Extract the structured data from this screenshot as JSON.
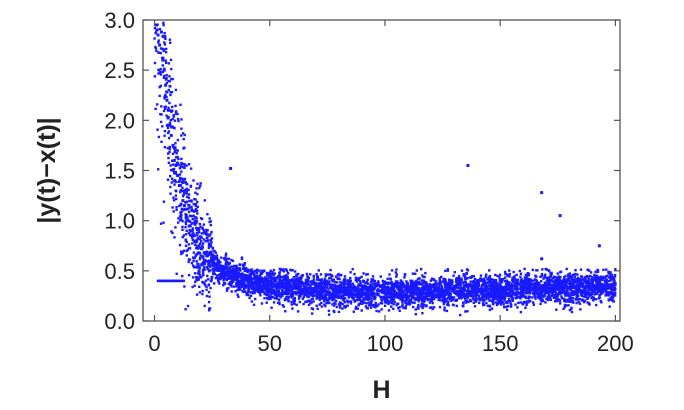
{
  "colors": {
    "points": "#1a1aff",
    "axis": "#555555",
    "text": "#222222",
    "background": "#ffffff"
  },
  "chart_data": {
    "type": "scatter",
    "title": "",
    "xlabel": "H",
    "ylabel": "|y(t)−x(t)|",
    "xlim": [
      -5,
      202
    ],
    "ylim": [
      0,
      3.0
    ],
    "x_ticks": [
      0,
      50,
      100,
      150,
      200
    ],
    "y_ticks": [
      0.0,
      0.5,
      1.0,
      1.5,
      2.0,
      2.5,
      3.0
    ],
    "x_tick_labels": [
      "0",
      "50",
      "100",
      "150",
      "200"
    ],
    "y_tick_labels": [
      "0.0",
      "0.5",
      "1.0",
      "1.5",
      "2.0",
      "2.5",
      "3.0"
    ],
    "grid": false,
    "legend": "none",
    "series": [
      {
        "points": [
          [
            0.8,
            2.95
          ],
          [
            1.5,
            2.85
          ],
          [
            2.2,
            2.75
          ],
          [
            3.0,
            2.88
          ],
          [
            3.6,
            2.6
          ],
          [
            4.2,
            2.5
          ],
          [
            4.8,
            2.35
          ],
          [
            5.4,
            2.2
          ],
          [
            6.0,
            2.1
          ],
          [
            6.7,
            1.95
          ],
          [
            7.3,
            1.85
          ],
          [
            8.0,
            1.75
          ],
          [
            8.6,
            1.6
          ],
          [
            9.3,
            1.55
          ],
          [
            10.0,
            1.45
          ],
          [
            10.8,
            1.35
          ],
          [
            11.5,
            1.3
          ],
          [
            12.3,
            1.2
          ],
          [
            13.0,
            1.15
          ],
          [
            13.8,
            1.05
          ],
          [
            14.6,
            1.0
          ],
          [
            15.5,
            0.95
          ],
          [
            16.4,
            0.9
          ],
          [
            17.3,
            0.85
          ],
          [
            18.3,
            0.8
          ],
          [
            19.3,
            0.75
          ],
          [
            20.4,
            0.72
          ],
          [
            21.5,
            0.68
          ],
          [
            22.7,
            0.65
          ],
          [
            24.0,
            0.6
          ],
          [
            25.4,
            0.57
          ],
          [
            26.8,
            0.55
          ],
          [
            28.3,
            0.52
          ],
          [
            30.0,
            0.5
          ],
          [
            32.0,
            0.48
          ],
          [
            34.0,
            0.46
          ],
          [
            36.5,
            0.44
          ],
          [
            39.0,
            0.42
          ],
          [
            42.0,
            0.4
          ],
          [
            45.0,
            0.38
          ],
          [
            48.0,
            0.37
          ],
          [
            52.0,
            0.35
          ],
          [
            56.0,
            0.34
          ],
          [
            60.0,
            0.33
          ],
          [
            65.0,
            0.32
          ],
          [
            70.0,
            0.31
          ],
          [
            75.0,
            0.3
          ],
          [
            80.0,
            0.3
          ],
          [
            90.0,
            0.29
          ],
          [
            100.0,
            0.29
          ],
          [
            110.0,
            0.29
          ],
          [
            120.0,
            0.3
          ],
          [
            130.0,
            0.3
          ],
          [
            140.0,
            0.31
          ],
          [
            150.0,
            0.31
          ],
          [
            160.0,
            0.32
          ],
          [
            170.0,
            0.33
          ],
          [
            180.0,
            0.33
          ],
          [
            190.0,
            0.34
          ],
          [
            199.0,
            0.35
          ]
        ]
      }
    ],
    "outliers": [
      [
        33,
        1.52
      ],
      [
        136,
        1.55
      ],
      [
        168,
        1.28
      ],
      [
        176,
        1.05
      ],
      [
        193,
        0.75
      ],
      [
        168,
        0.62
      ]
    ],
    "plateau_segment": {
      "x": [
        1.5,
        13.0
      ],
      "y": 0.4
    }
  }
}
